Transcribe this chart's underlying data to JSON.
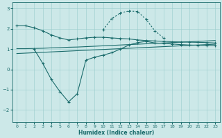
{
  "xlabel": "Humidex (Indice chaleur)",
  "xlim": [
    -0.5,
    23.5
  ],
  "ylim": [
    -2.6,
    3.3
  ],
  "yticks": [
    -2,
    -1,
    0,
    1,
    2,
    3
  ],
  "xticks": [
    0,
    1,
    2,
    3,
    4,
    5,
    6,
    7,
    8,
    9,
    10,
    11,
    12,
    13,
    14,
    15,
    16,
    17,
    18,
    19,
    20,
    21,
    22,
    23
  ],
  "bg_color": "#cce8e8",
  "line_color": "#1a6b6b",
  "grid_color": "#99cccc",
  "line1_x": [
    0,
    1,
    2,
    3,
    4,
    5,
    6,
    7,
    8,
    9,
    10,
    11,
    12,
    13,
    14,
    15,
    16,
    17,
    18,
    19,
    20,
    21,
    22,
    23
  ],
  "line1_y": [
    2.15,
    2.15,
    2.05,
    1.9,
    1.7,
    1.55,
    1.45,
    1.5,
    1.55,
    1.58,
    1.58,
    1.55,
    1.52,
    1.5,
    1.45,
    1.42,
    1.4,
    1.38,
    1.36,
    1.35,
    1.34,
    1.33,
    1.32,
    1.3
  ],
  "line2_x": [
    2,
    3,
    4,
    5,
    6,
    7,
    8,
    9,
    10,
    11,
    12,
    13,
    14,
    15,
    16,
    17,
    18,
    19,
    20,
    21,
    22,
    23
  ],
  "line2_y": [
    1.0,
    0.3,
    -0.5,
    -1.1,
    -1.6,
    -1.2,
    0.45,
    0.6,
    0.7,
    0.82,
    1.0,
    1.2,
    1.32,
    1.38,
    1.3,
    1.28,
    1.25,
    1.22,
    1.2,
    1.19,
    1.18,
    1.17
  ],
  "line3_x": [
    0,
    1,
    2,
    3,
    4,
    5,
    6,
    7,
    8,
    9,
    10,
    11,
    12,
    13,
    14,
    15,
    16,
    17,
    18,
    19,
    20,
    21,
    22,
    23
  ],
  "line3_y": [
    1.02,
    1.02,
    1.03,
    1.04,
    1.06,
    1.07,
    1.09,
    1.1,
    1.12,
    1.14,
    1.16,
    1.18,
    1.2,
    1.22,
    1.24,
    1.26,
    1.28,
    1.3,
    1.32,
    1.34,
    1.36,
    1.38,
    1.4,
    1.42
  ],
  "line4_x": [
    0,
    1,
    2,
    3,
    4,
    5,
    6,
    7,
    8,
    9,
    10,
    11,
    12,
    13,
    14,
    15,
    16,
    17,
    18,
    19,
    20,
    21,
    22,
    23
  ],
  "line4_y": [
    0.78,
    0.8,
    0.82,
    0.84,
    0.86,
    0.88,
    0.9,
    0.92,
    0.94,
    0.96,
    0.98,
    1.0,
    1.02,
    1.04,
    1.06,
    1.08,
    1.1,
    1.12,
    1.14,
    1.16,
    1.18,
    1.2,
    1.22,
    1.24
  ],
  "dotted_x": [
    10,
    11,
    12,
    13,
    14,
    15,
    16,
    17
  ],
  "dotted_y": [
    1.95,
    2.5,
    2.78,
    2.88,
    2.85,
    2.45,
    1.9,
    1.55
  ]
}
